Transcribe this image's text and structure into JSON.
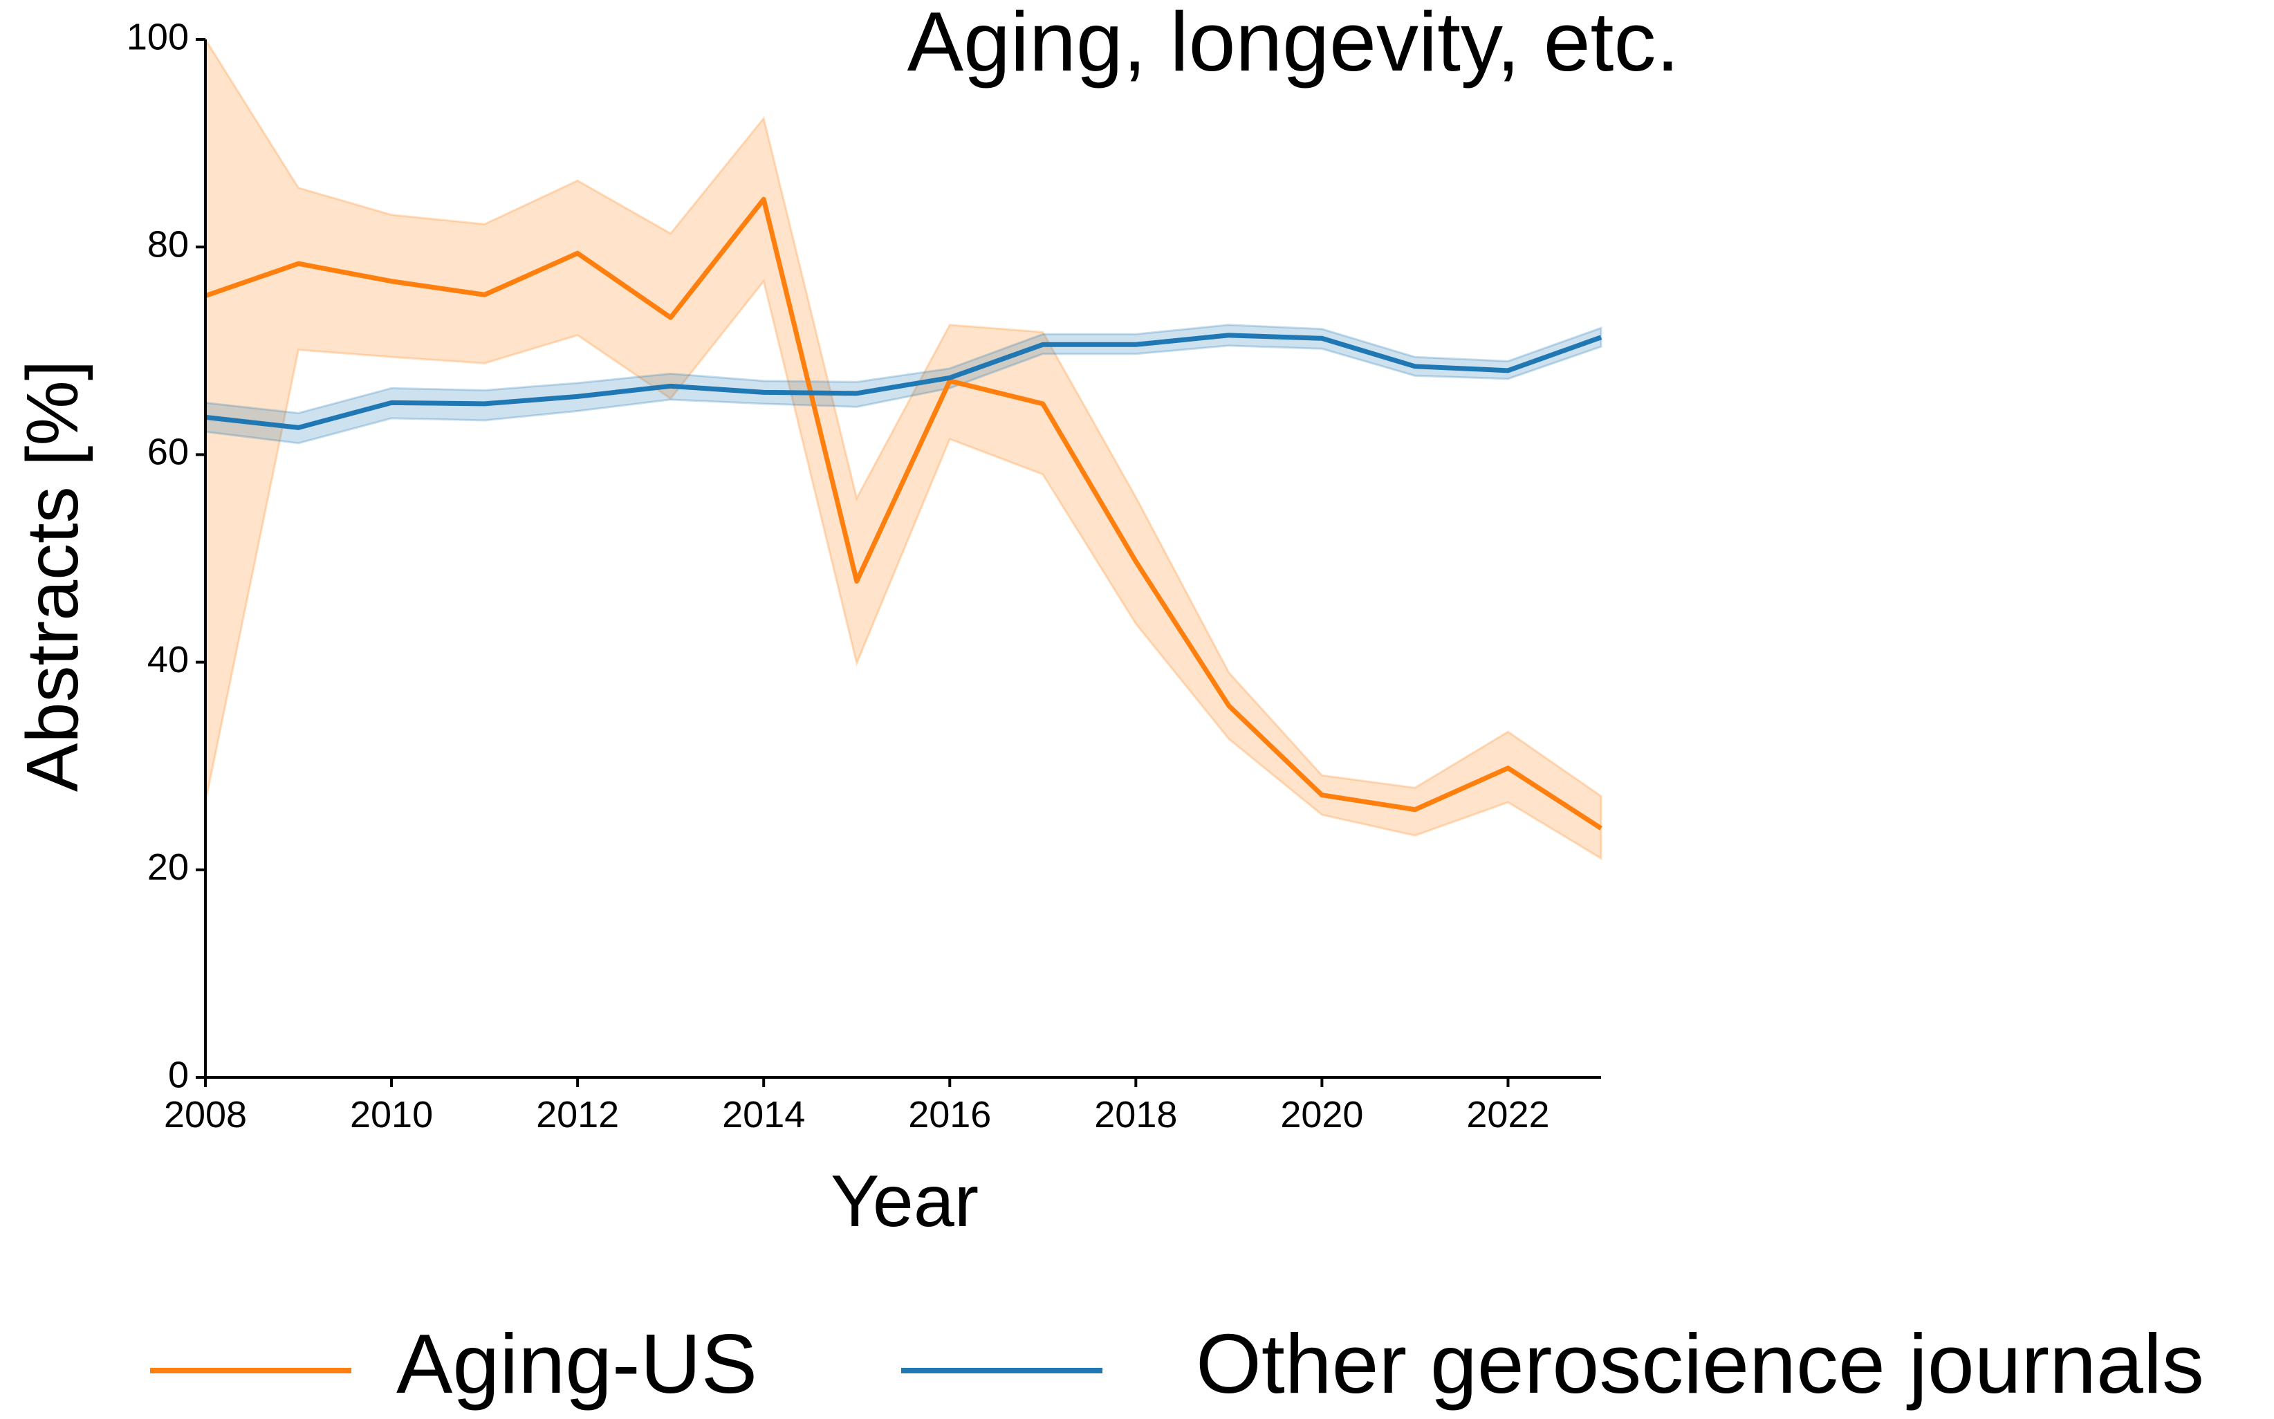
{
  "chart_data": {
    "type": "line",
    "title": "Aging, longevity, etc.",
    "x_label": "Year",
    "y_label": "Abstracts [%]",
    "x": [
      2008,
      2009,
      2010,
      2011,
      2012,
      2013,
      2014,
      2015,
      2016,
      2017,
      2018,
      2019,
      2020,
      2021,
      2022,
      2023
    ],
    "series": [
      {
        "name": "Aging-US",
        "color": "#ff7f0e",
        "values": [
          75.3,
          78.4,
          76.7,
          75.4,
          79.4,
          73.2,
          84.6,
          47.8,
          67.1,
          64.9,
          49.7,
          35.8,
          27.2,
          25.8,
          29.8,
          24.0
        ],
        "upper": [
          100,
          85.7,
          83.1,
          82.2,
          86.4,
          81.3,
          92.4,
          55.8,
          72.5,
          71.8,
          55.9,
          39.0,
          29.1,
          27.9,
          33.3,
          27.1
        ],
        "lower": [
          26.5,
          70.1,
          69.4,
          68.8,
          71.5,
          65.4,
          76.7,
          39.9,
          61.5,
          58.1,
          43.7,
          32.6,
          25.3,
          23.3,
          26.5,
          21.1
        ]
      },
      {
        "name": "Other geroscience journals",
        "color": "#1f77b4",
        "values": [
          63.6,
          62.6,
          65.0,
          64.9,
          65.6,
          66.6,
          66.0,
          65.9,
          67.4,
          70.6,
          70.6,
          71.5,
          71.2,
          68.5,
          68.1,
          71.3
        ],
        "upper": [
          65.0,
          64.0,
          66.4,
          66.2,
          66.9,
          67.8,
          67.1,
          67.0,
          68.3,
          71.6,
          71.6,
          72.5,
          72.1,
          69.4,
          69.0,
          72.2
        ],
        "lower": [
          62.2,
          61.1,
          63.5,
          63.3,
          64.2,
          65.3,
          64.9,
          64.6,
          66.4,
          69.7,
          69.7,
          70.5,
          70.2,
          67.6,
          67.3,
          70.4
        ]
      }
    ],
    "xlim": [
      2008,
      2023
    ],
    "xticks": [
      2008,
      2010,
      2012,
      2014,
      2016,
      2018,
      2020,
      2022
    ],
    "ylim": [
      0,
      100
    ],
    "yticks": [
      0,
      20,
      40,
      60,
      80,
      100
    ],
    "legend": "bottom"
  }
}
